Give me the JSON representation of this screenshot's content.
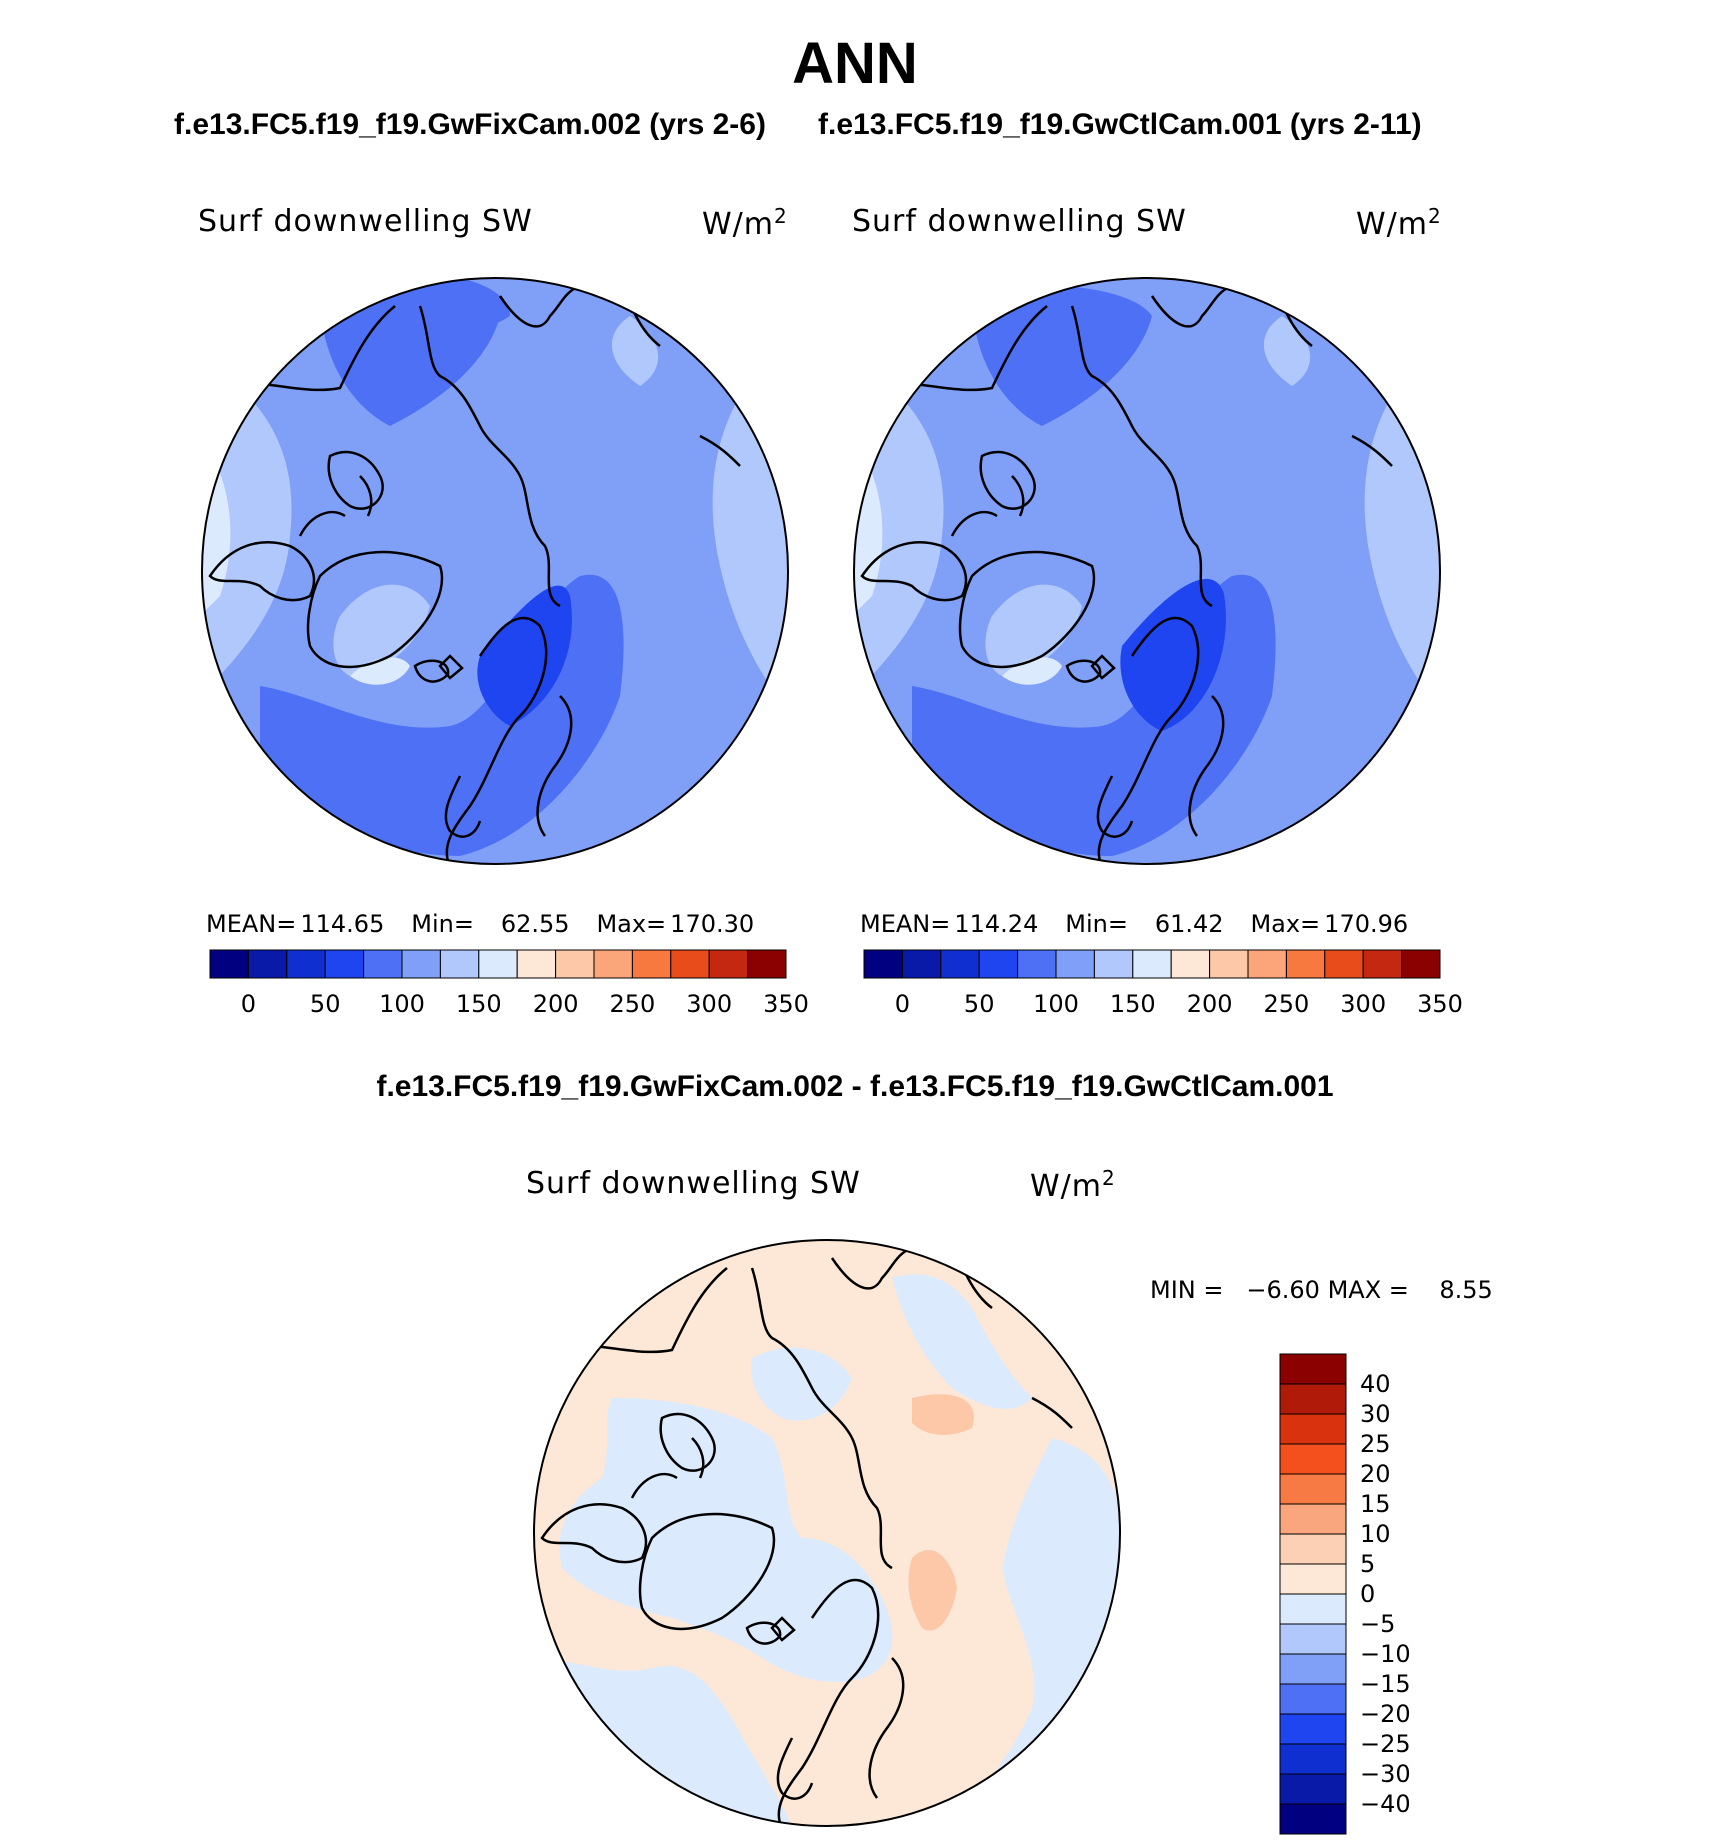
{
  "title": "ANN",
  "case1_title": "f.e13.FC5.f19_f19.GwFixCam.002 (yrs 2-6)",
  "case2_title": "f.e13.FC5.f19_f19.GwCtlCam.001 (yrs 2-11)",
  "diff_title": "f.e13.FC5.f19_f19.GwFixCam.002 - f.e13.FC5.f19_f19.GwCtlCam.001",
  "chart_data": [
    {
      "type": "contour-map",
      "panel": "case1",
      "variable": "Surf downwelling SW",
      "units": "W/m",
      "units_exp": "2",
      "stats": {
        "mean_label": "MEAN=",
        "mean": "114.65",
        "min_label": "Min=",
        "min": "62.55",
        "max_label": "Max=",
        "max": "170.30"
      },
      "colorbar_levels": [
        0,
        25,
        50,
        75,
        100,
        125,
        150,
        175,
        200,
        225,
        250,
        275,
        300,
        325,
        350
      ],
      "colorbar_tick_labels": [
        "0",
        "50",
        "100",
        "150",
        "200",
        "250",
        "300",
        "350"
      ],
      "colors": [
        "#000080",
        "#0a1aa8",
        "#0f2fd0",
        "#1e45f0",
        "#4d70f5",
        "#80a0f8",
        "#b0c8fb",
        "#dceafd",
        "#fde8d8",
        "#fcc8a8",
        "#fba67a",
        "#f7793f",
        "#e84c1b",
        "#c42811",
        "#8b0000"
      ]
    },
    {
      "type": "contour-map",
      "panel": "case2",
      "variable": "Surf downwelling SW",
      "units": "W/m",
      "units_exp": "2",
      "stats": {
        "mean_label": "MEAN=",
        "mean": "114.24",
        "min_label": "Min=",
        "min": "61.42",
        "max_label": "Max=",
        "max": "170.96"
      },
      "colorbar_levels": [
        0,
        25,
        50,
        75,
        100,
        125,
        150,
        175,
        200,
        225,
        250,
        275,
        300,
        325,
        350
      ],
      "colorbar_tick_labels": [
        "0",
        "50",
        "100",
        "150",
        "200",
        "250",
        "300",
        "350"
      ],
      "colors": [
        "#000080",
        "#0a1aa8",
        "#0f2fd0",
        "#1e45f0",
        "#4d70f5",
        "#80a0f8",
        "#b0c8fb",
        "#dceafd",
        "#fde8d8",
        "#fcc8a8",
        "#fba67a",
        "#f7793f",
        "#e84c1b",
        "#c42811",
        "#8b0000"
      ]
    },
    {
      "type": "contour-map",
      "panel": "difference",
      "variable": "Surf downwelling SW",
      "units": "W/m",
      "units_exp": "2",
      "stats": {
        "min_label": "MIN =",
        "min": "−6.60",
        "max_label": "MAX =",
        "max": "8.55"
      },
      "colorbar_tick_labels": [
        "40",
        "30",
        "25",
        "20",
        "15",
        "10",
        "5",
        "0",
        "−5",
        "−10",
        "−15",
        "−20",
        "−25",
        "−30",
        "−40"
      ],
      "colors": [
        "#8b0000",
        "#b01a08",
        "#d8320e",
        "#f4501e",
        "#f77a45",
        "#f9a57e",
        "#fcd0b4",
        "#fde8d8",
        "#dceafd",
        "#b0c8fb",
        "#80a0f8",
        "#4d70f5",
        "#1e45f0",
        "#0f2fd0",
        "#0a1aa8",
        "#000080"
      ]
    }
  ]
}
